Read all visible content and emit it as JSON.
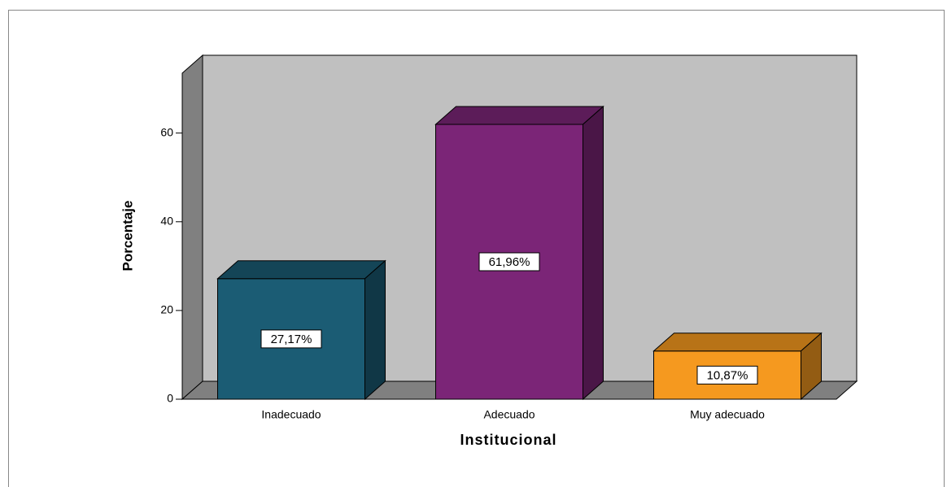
{
  "chart_data": {
    "type": "bar3d",
    "categories": [
      "Inadecuado",
      "Adecuado",
      "Muy adecuado"
    ],
    "values": [
      27.17,
      61.96,
      10.87
    ],
    "value_labels": [
      "27,17%",
      "61,96%",
      "10,87%"
    ],
    "colors": [
      "#1b5c74",
      "#7b2577",
      "#f5991f"
    ],
    "ylabel": "Porcentaje",
    "xlabel": "Institucional",
    "ylim": [
      0,
      73.5
    ],
    "yticks": [
      0,
      20,
      40,
      60
    ]
  }
}
